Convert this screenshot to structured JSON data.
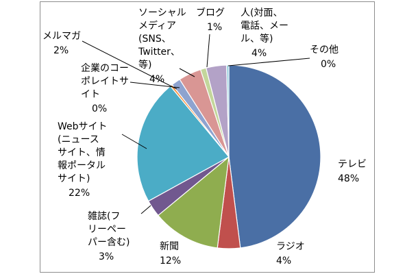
{
  "chart_data": {
    "type": "pie",
    "title": "",
    "slices": [
      {
        "key": "tv",
        "label_lines": [
          "テレビ"
        ],
        "value_label": "48%",
        "value": 48.0,
        "color": "#4a6fa5"
      },
      {
        "key": "radio",
        "label_lines": [
          "ラジオ"
        ],
        "value_label": "4%",
        "value": 4.0,
        "color": "#c0504d"
      },
      {
        "key": "newspaper",
        "label_lines": [
          "新聞"
        ],
        "value_label": "12%",
        "value": 12.0,
        "color": "#8fad4f"
      },
      {
        "key": "magazine",
        "label_lines": [
          "雑誌(フ",
          "リーペー",
          "パー含む)"
        ],
        "value_label": "3%",
        "value": 3.0,
        "color": "#71588f"
      },
      {
        "key": "website",
        "label_lines": [
          "Webサイト",
          "(ニュース",
          "サイト、情",
          "報ポータル",
          "サイト)"
        ],
        "value_label": "22%",
        "value": 22.0,
        "color": "#4bacc6"
      },
      {
        "key": "corporate",
        "label_lines": [
          "企業のコー",
          "ポレイトサ",
          "イト"
        ],
        "value_label": "0%",
        "value": 0.4,
        "color": "#f79646"
      },
      {
        "key": "mailmag",
        "label_lines": [
          "メルマガ"
        ],
        "value_label": "2%",
        "value": 1.6,
        "color": "#8ea3cf"
      },
      {
        "key": "social",
        "label_lines": [
          "ソーシャル",
          "メディア",
          "(SNS、",
          "Twitter、",
          "等)"
        ],
        "value_label": "4%",
        "value": 4.0,
        "color": "#d99694"
      },
      {
        "key": "blog",
        "label_lines": [
          "ブログ"
        ],
        "value_label": "1%",
        "value": 1.0,
        "color": "#c3d69b"
      },
      {
        "key": "person",
        "label_lines": [
          "人(対面、",
          "電話、メー",
          "ル、等)"
        ],
        "value_label": "4%",
        "value": 3.6,
        "color": "#b3a2c7"
      },
      {
        "key": "other",
        "label_lines": [
          "その他"
        ],
        "value_label": "0%",
        "value": 0.4,
        "color": "#93cddd"
      }
    ]
  }
}
